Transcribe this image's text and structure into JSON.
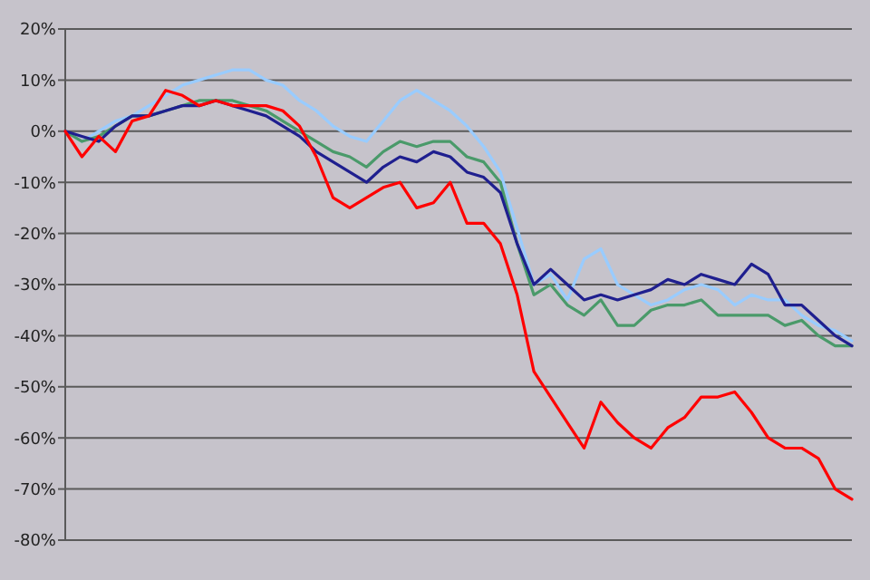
{
  "chart_data": {
    "type": "line",
    "categories": [
      null,
      null,
      null,
      null,
      null,
      null,
      null,
      null,
      null,
      null,
      null,
      null,
      null,
      null,
      null,
      null,
      null,
      null,
      null,
      null,
      null,
      null,
      null,
      null,
      null,
      null,
      null,
      null,
      null,
      null,
      null,
      null,
      null,
      null,
      null,
      null,
      null,
      null,
      null,
      null,
      null,
      null,
      null,
      null,
      null,
      null,
      null,
      null
    ],
    "series": [
      {
        "color": "#99ccff",
        "values": [
          0,
          -2,
          0,
          2,
          3,
          5,
          7,
          9,
          10,
          11,
          12,
          12,
          10,
          9,
          6,
          4,
          1,
          -1,
          -2,
          2,
          6,
          8,
          6,
          4,
          1,
          -3,
          -8,
          -19,
          -30,
          -28,
          -33,
          -25,
          -23,
          -30,
          -32,
          -34,
          -33,
          -31,
          -30,
          -31,
          -34,
          -32,
          -33,
          -33,
          -36,
          -38,
          -39,
          -41
        ]
      },
      {
        "color": "#4a9a6a",
        "values": [
          0,
          -2,
          -1,
          1,
          3,
          3,
          4,
          5,
          6,
          6,
          6,
          5,
          4,
          2,
          0,
          -2,
          -4,
          -5,
          -7,
          -4,
          -2,
          -3,
          -2,
          -2,
          -5,
          -6,
          -10,
          -22,
          -32,
          -30,
          -34,
          -36,
          -33,
          -38,
          -38,
          -35,
          -34,
          -34,
          -33,
          -36,
          -36,
          -36,
          -36,
          -38,
          -37,
          -40,
          -42,
          -42
        ]
      },
      {
        "color": "#1f1f8f",
        "values": [
          0,
          -1,
          -2,
          1,
          3,
          3,
          4,
          5,
          5,
          6,
          5,
          4,
          3,
          1,
          -1,
          -4,
          -6,
          -8,
          -10,
          -7,
          -5,
          -6,
          -4,
          -5,
          -8,
          -9,
          -12,
          -22,
          -30,
          -27,
          -30,
          -33,
          -32,
          -33,
          -32,
          -31,
          -29,
          -30,
          -28,
          -29,
          -30,
          -26,
          -28,
          -34,
          -34,
          -37,
          -40,
          -42
        ]
      },
      {
        "color": "#ff0000",
        "values": [
          0,
          -5,
          -1,
          -4,
          2,
          3,
          8,
          7,
          5,
          6,
          5,
          5,
          5,
          4,
          1,
          -5,
          -13,
          -15,
          -13,
          -11,
          -10,
          -15,
          -14,
          -10,
          -18,
          -18,
          -22,
          -32,
          -47,
          -52,
          -57,
          -62,
          -53,
          -57,
          -60,
          -62,
          -58,
          -56,
          -52,
          -52,
          -51,
          -55,
          -60,
          -62,
          -62,
          -64,
          -70,
          -72
        ]
      }
    ],
    "ylim": [
      -80,
      20
    ],
    "yticks": [
      {
        "value": -80,
        "label": "-80%"
      },
      {
        "value": -70,
        "label": "-70%"
      },
      {
        "value": -60,
        "label": "-60%"
      },
      {
        "value": -50,
        "label": "-50%"
      },
      {
        "value": -40,
        "label": "-40%"
      },
      {
        "value": -30,
        "label": "-30%"
      },
      {
        "value": -20,
        "label": "-20%"
      },
      {
        "value": -10,
        "label": "-10%"
      },
      {
        "value": 0,
        "label": "0%"
      },
      {
        "value": 10,
        "label": "10%"
      },
      {
        "value": 20,
        "label": "20%"
      }
    ],
    "grid": "y"
  }
}
